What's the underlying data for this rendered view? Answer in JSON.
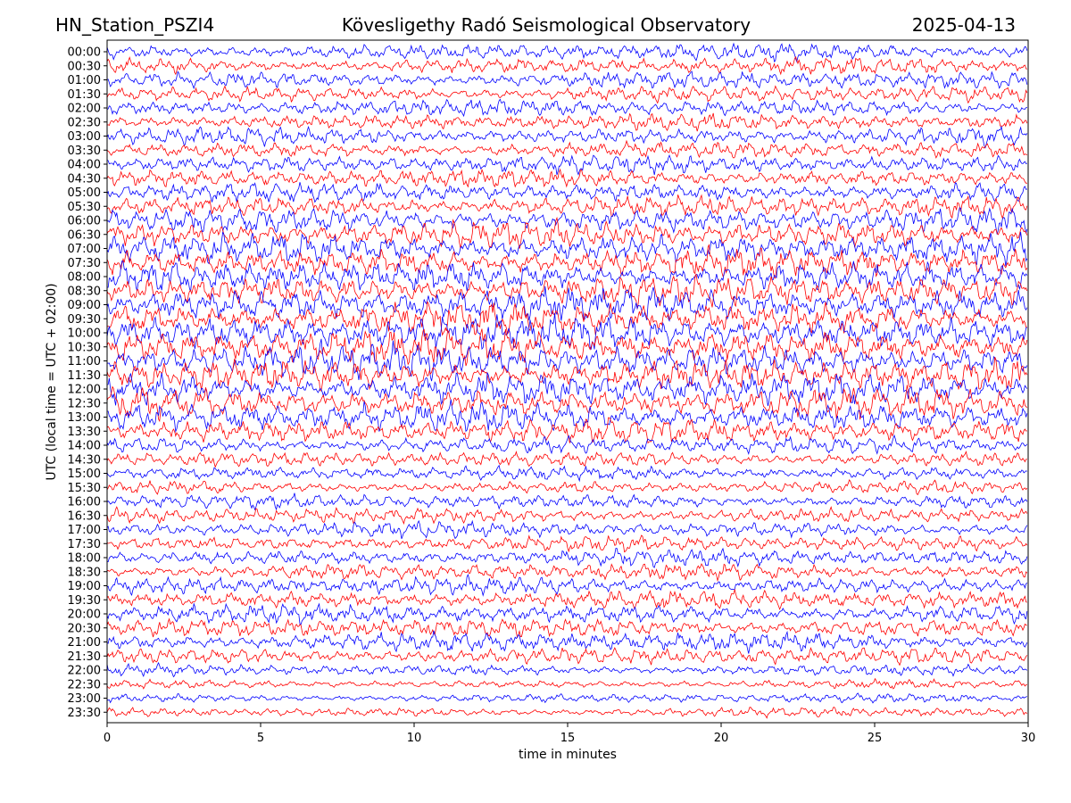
{
  "header": {
    "station": "HN_Station_PSZI4",
    "observatory": "Kövesligethy Radó Seismological Observatory",
    "date": "2025-04-13"
  },
  "chart_data": {
    "type": "line",
    "xlabel": "time in minutes",
    "ylabel": "UTC (local time = UTC + 02:00)",
    "xlim": [
      0,
      30
    ],
    "x_ticks": [
      0,
      5,
      10,
      15,
      20,
      25,
      30
    ],
    "row_labels": [
      "00:00",
      "00:30",
      "01:00",
      "01:30",
      "02:00",
      "02:30",
      "03:00",
      "03:30",
      "04:00",
      "04:30",
      "05:00",
      "05:30",
      "06:00",
      "06:30",
      "07:00",
      "07:30",
      "08:00",
      "08:30",
      "09:00",
      "09:30",
      "10:00",
      "10:30",
      "11:00",
      "11:30",
      "12:00",
      "12:30",
      "13:00",
      "13:30",
      "14:00",
      "14:30",
      "15:00",
      "15:30",
      "16:00",
      "16:30",
      "17:00",
      "17:30",
      "18:00",
      "18:30",
      "19:00",
      "19:30",
      "20:00",
      "20:30",
      "21:00",
      "21:30",
      "22:00",
      "22:30",
      "23:00",
      "23:30"
    ],
    "row_colors": [
      "#0000ff",
      "#ff0000"
    ],
    "row_activity": [
      0.9,
      0.85,
      0.9,
      0.85,
      0.9,
      0.85,
      0.9,
      0.85,
      0.95,
      0.9,
      1.0,
      1.1,
      1.3,
      1.4,
      1.5,
      1.5,
      1.6,
      1.6,
      1.7,
      1.7,
      1.8,
      1.8,
      1.8,
      1.7,
      1.7,
      1.6,
      1.5,
      1.3,
      0.9,
      0.8,
      0.7,
      0.65,
      0.75,
      0.8,
      0.8,
      0.8,
      0.85,
      0.85,
      0.9,
      0.95,
      1.0,
      1.0,
      1.0,
      0.9,
      0.6,
      0.45,
      0.45,
      0.5
    ],
    "grid": false
  }
}
